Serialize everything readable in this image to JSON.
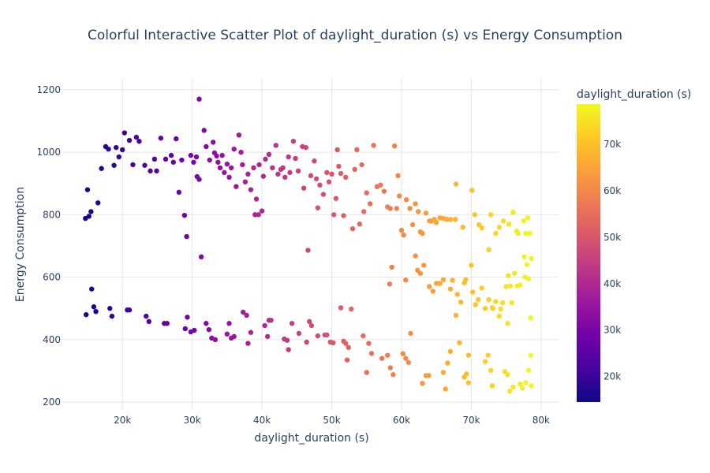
{
  "chart_data": {
    "type": "scatter",
    "title": "Colorful Interactive Scatter Plot of daylight_duration (s) vs Energy Consumption",
    "xlabel": "daylight_duration (s)",
    "ylabel": "Energy Consumption",
    "xlim": [
      11500,
      82500
    ],
    "ylim": [
      175,
      1235
    ],
    "x_ticks": [
      20000,
      30000,
      40000,
      50000,
      60000,
      70000,
      80000
    ],
    "x_tick_labels": [
      "20k",
      "30k",
      "40k",
      "50k",
      "60k",
      "70k",
      "80k"
    ],
    "y_ticks": [
      200,
      400,
      600,
      800,
      1000,
      1200
    ],
    "y_tick_labels": [
      "200",
      "400",
      "600",
      "800",
      "1000",
      "1200"
    ],
    "grid": true,
    "colorscale": "plasma",
    "colorscale_stops": [
      "#0d0887",
      "#46039f",
      "#7201a8",
      "#9c179e",
      "#bd3786",
      "#d8576b",
      "#ed7953",
      "#fb9f3a",
      "#fdca26",
      "#f0f921"
    ],
    "colorbar": {
      "title": "daylight_duration (s)",
      "range": [
        14500,
        78700
      ],
      "ticks": [
        20000,
        30000,
        40000,
        50000,
        60000,
        70000
      ],
      "tick_labels": [
        "20k",
        "30k",
        "40k",
        "50k",
        "60k",
        "70k"
      ]
    },
    "points": [
      [
        14700,
        788
      ],
      [
        15000,
        880
      ],
      [
        15200,
        795
      ],
      [
        15500,
        810
      ],
      [
        16500,
        838
      ],
      [
        17000,
        948
      ],
      [
        17600,
        1018
      ],
      [
        18000,
        1010
      ],
      [
        18800,
        958
      ],
      [
        19100,
        1015
      ],
      [
        19500,
        985
      ],
      [
        20000,
        1008
      ],
      [
        20300,
        1062
      ],
      [
        21000,
        1038
      ],
      [
        21500,
        960
      ],
      [
        22000,
        1048
      ],
      [
        22400,
        1035
      ],
      [
        23200,
        958
      ],
      [
        24000,
        940
      ],
      [
        24600,
        978
      ],
      [
        24900,
        940
      ],
      [
        25500,
        1045
      ],
      [
        26200,
        978
      ],
      [
        27000,
        990
      ],
      [
        27300,
        968
      ],
      [
        27700,
        1043
      ],
      [
        28100,
        872
      ],
      [
        28500,
        975
      ],
      [
        28900,
        798
      ],
      [
        29200,
        730
      ],
      [
        29800,
        990
      ],
      [
        30200,
        968
      ],
      [
        30600,
        985
      ],
      [
        30700,
        922
      ],
      [
        31000,
        913
      ],
      [
        31000,
        1170
      ],
      [
        31300,
        665
      ],
      [
        31700,
        1070
      ],
      [
        32000,
        1018
      ],
      [
        32500,
        975
      ],
      [
        33000,
        1032
      ],
      [
        33200,
        998
      ],
      [
        33500,
        988
      ],
      [
        33700,
        968
      ],
      [
        34000,
        950
      ],
      [
        34300,
        990
      ],
      [
        34600,
        935
      ],
      [
        35000,
        962
      ],
      [
        35300,
        920
      ],
      [
        35600,
        950
      ],
      [
        36000,
        1010
      ],
      [
        36300,
        890
      ],
      [
        36700,
        1055
      ],
      [
        37000,
        1000
      ],
      [
        37200,
        960
      ],
      [
        37600,
        905
      ],
      [
        38000,
        930
      ],
      [
        38400,
        880
      ],
      [
        38800,
        950
      ],
      [
        39000,
        800
      ],
      [
        39200,
        850
      ],
      [
        39500,
        800
      ],
      [
        39600,
        960
      ],
      [
        40000,
        812
      ],
      [
        40200,
        923
      ],
      [
        40500,
        978
      ],
      [
        41000,
        993
      ],
      [
        41500,
        950
      ],
      [
        42000,
        1022
      ],
      [
        42300,
        930
      ],
      [
        42700,
        945
      ],
      [
        43000,
        950
      ],
      [
        43300,
        920
      ],
      [
        43800,
        985
      ],
      [
        44000,
        935
      ],
      [
        44500,
        1035
      ],
      [
        44800,
        980
      ],
      [
        45200,
        940
      ],
      [
        45800,
        1018
      ],
      [
        46000,
        885
      ],
      [
        46300,
        1015
      ],
      [
        46600,
        686
      ],
      [
        47000,
        925
      ],
      [
        47500,
        972
      ],
      [
        47800,
        915
      ],
      [
        48000,
        822
      ],
      [
        48300,
        895
      ],
      [
        48800,
        865
      ],
      [
        49300,
        935
      ],
      [
        49600,
        905
      ],
      [
        50000,
        930
      ],
      [
        50300,
        800
      ],
      [
        50600,
        852
      ],
      [
        50800,
        1008
      ],
      [
        51000,
        955
      ],
      [
        51300,
        932
      ],
      [
        51700,
        797
      ],
      [
        52000,
        920
      ],
      [
        53000,
        755
      ],
      [
        53300,
        945
      ],
      [
        53600,
        1008
      ],
      [
        54000,
        770
      ],
      [
        54300,
        960
      ],
      [
        54600,
        810
      ],
      [
        55000,
        870
      ],
      [
        55500,
        835
      ],
      [
        56000,
        1022
      ],
      [
        56500,
        890
      ],
      [
        57000,
        895
      ],
      [
        57500,
        875
      ],
      [
        58000,
        825
      ],
      [
        58400,
        820
      ],
      [
        59000,
        1020
      ],
      [
        59300,
        820
      ],
      [
        59500,
        925
      ],
      [
        59700,
        860
      ],
      [
        60000,
        750
      ],
      [
        60300,
        735
      ],
      [
        60700,
        848
      ],
      [
        61200,
        820
      ],
      [
        61600,
        768
      ],
      [
        62000,
        835
      ],
      [
        62400,
        810
      ],
      [
        62700,
        745
      ],
      [
        63000,
        740
      ],
      [
        63500,
        805
      ],
      [
        64000,
        780
      ],
      [
        64300,
        780
      ],
      [
        64700,
        785
      ],
      [
        65000,
        775
      ],
      [
        65500,
        790
      ],
      [
        66000,
        788
      ],
      [
        66500,
        785
      ],
      [
        67000,
        785
      ],
      [
        67700,
        785
      ],
      [
        67800,
        898
      ],
      [
        68800,
        760
      ],
      [
        70100,
        878
      ],
      [
        70500,
        800
      ],
      [
        71100,
        768
      ],
      [
        71500,
        758
      ],
      [
        72500,
        688
      ],
      [
        72800,
        800
      ],
      [
        73500,
        740
      ],
      [
        74000,
        760
      ],
      [
        74600,
        780
      ],
      [
        75400,
        770
      ],
      [
        76000,
        808
      ],
      [
        76500,
        748
      ],
      [
        76700,
        740
      ],
      [
        77500,
        780
      ],
      [
        77800,
        740
      ],
      [
        78100,
        790
      ],
      [
        78400,
        740
      ],
      [
        58300,
        578
      ],
      [
        58600,
        632
      ],
      [
        60600,
        591
      ],
      [
        62000,
        668
      ],
      [
        62300,
        622
      ],
      [
        62700,
        612
      ],
      [
        63200,
        638
      ],
      [
        64000,
        570
      ],
      [
        64500,
        555
      ],
      [
        65000,
        580
      ],
      [
        65500,
        580
      ],
      [
        66000,
        592
      ],
      [
        67000,
        562
      ],
      [
        67300,
        590
      ],
      [
        68000,
        545
      ],
      [
        68500,
        520
      ],
      [
        69000,
        582
      ],
      [
        69200,
        592
      ],
      [
        70000,
        638
      ],
      [
        70200,
        552
      ],
      [
        70600,
        512
      ],
      [
        71000,
        528
      ],
      [
        71500,
        565
      ],
      [
        72000,
        500
      ],
      [
        72500,
        528
      ],
      [
        73000,
        502
      ],
      [
        73500,
        522
      ],
      [
        74000,
        475
      ],
      [
        74200,
        498
      ],
      [
        74500,
        518
      ],
      [
        75000,
        570
      ],
      [
        75300,
        605
      ],
      [
        75600,
        572
      ],
      [
        75800,
        518
      ],
      [
        76200,
        612
      ],
      [
        76600,
        572
      ],
      [
        77000,
        575
      ],
      [
        77600,
        665
      ],
      [
        78000,
        640
      ],
      [
        78200,
        595
      ],
      [
        78600,
        660
      ],
      [
        67800,
        478
      ],
      [
        75200,
        452
      ],
      [
        78500,
        470
      ],
      [
        73100,
        500
      ],
      [
        77700,
        600
      ],
      [
        14800,
        480
      ],
      [
        15600,
        562
      ],
      [
        15900,
        505
      ],
      [
        16200,
        490
      ],
      [
        18200,
        500
      ],
      [
        18500,
        475
      ],
      [
        20700,
        495
      ],
      [
        21000,
        495
      ],
      [
        23400,
        475
      ],
      [
        23800,
        458
      ],
      [
        26000,
        452
      ],
      [
        26400,
        452
      ],
      [
        29000,
        435
      ],
      [
        29300,
        472
      ],
      [
        29800,
        425
      ],
      [
        30300,
        430
      ],
      [
        32000,
        452
      ],
      [
        32400,
        432
      ],
      [
        32800,
        405
      ],
      [
        33300,
        400
      ],
      [
        35000,
        418
      ],
      [
        35300,
        452
      ],
      [
        35600,
        405
      ],
      [
        36000,
        410
      ],
      [
        37300,
        488
      ],
      [
        37800,
        478
      ],
      [
        38000,
        388
      ],
      [
        38400,
        423
      ],
      [
        40400,
        445
      ],
      [
        40800,
        410
      ],
      [
        41000,
        462
      ],
      [
        41300,
        462
      ],
      [
        43200,
        402
      ],
      [
        43600,
        398
      ],
      [
        43800,
        368
      ],
      [
        44300,
        452
      ],
      [
        45300,
        420
      ],
      [
        46400,
        392
      ],
      [
        46800,
        458
      ],
      [
        47100,
        445
      ],
      [
        48000,
        412
      ],
      [
        49000,
        415
      ],
      [
        49300,
        415
      ],
      [
        49800,
        392
      ],
      [
        50200,
        390
      ],
      [
        51300,
        502
      ],
      [
        51700,
        395
      ],
      [
        52000,
        388
      ],
      [
        52200,
        335
      ],
      [
        52400,
        375
      ],
      [
        52800,
        498
      ],
      [
        54500,
        412
      ],
      [
        55000,
        295
      ],
      [
        55300,
        388
      ],
      [
        55700,
        356
      ],
      [
        57200,
        340
      ],
      [
        58000,
        350
      ],
      [
        58400,
        310
      ],
      [
        58800,
        288
      ],
      [
        60200,
        355
      ],
      [
        60600,
        340
      ],
      [
        61000,
        327
      ],
      [
        61300,
        420
      ],
      [
        63000,
        260
      ],
      [
        63500,
        285
      ],
      [
        63900,
        285
      ],
      [
        66000,
        295
      ],
      [
        66300,
        242
      ],
      [
        66600,
        325
      ],
      [
        67000,
        362
      ],
      [
        68300,
        390
      ],
      [
        69000,
        280
      ],
      [
        69300,
        290
      ],
      [
        69600,
        262
      ],
      [
        72000,
        330
      ],
      [
        72400,
        350
      ],
      [
        72800,
        302
      ],
      [
        73000,
        252
      ],
      [
        74800,
        298
      ],
      [
        75200,
        288
      ],
      [
        75500,
        235
      ],
      [
        76000,
        248
      ],
      [
        77000,
        258
      ],
      [
        77300,
        245
      ],
      [
        77800,
        262
      ],
      [
        78200,
        302
      ],
      [
        78500,
        350
      ],
      [
        78600,
        252
      ],
      [
        69600,
        350
      ]
    ]
  }
}
